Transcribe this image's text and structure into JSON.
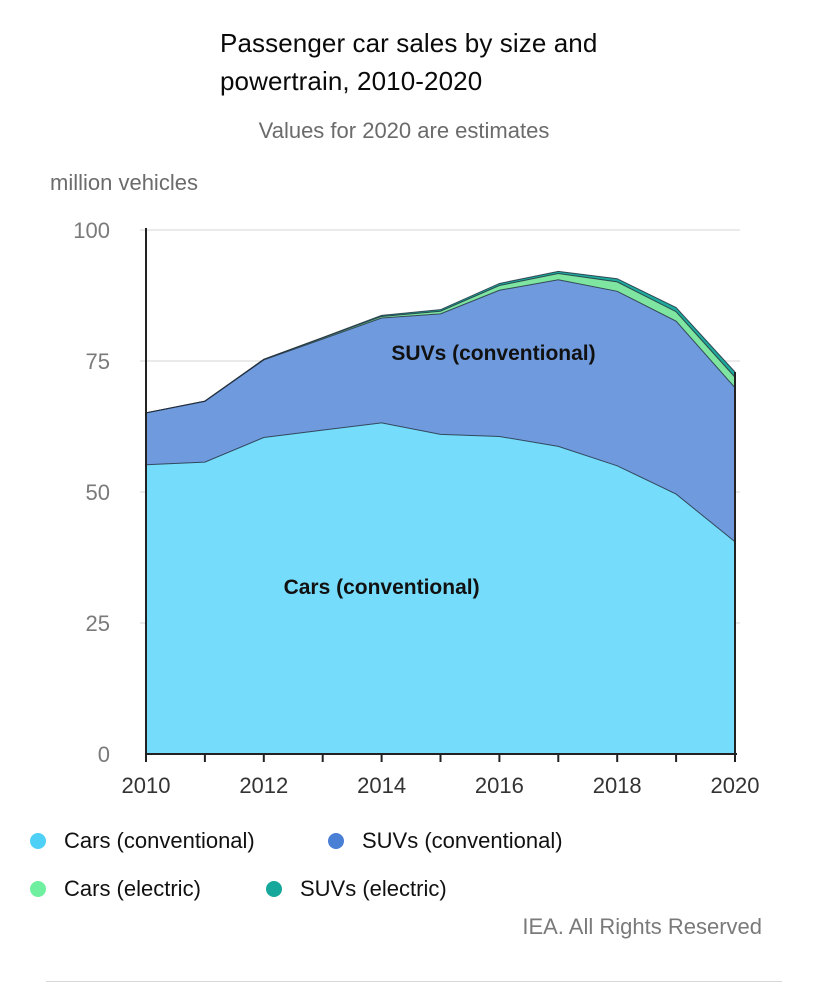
{
  "chart_data": {
    "type": "area",
    "stacked": true,
    "title": "Passenger car sales by size and powertrain, 2010-2020",
    "subtitle": "Values for 2020 are estimates",
    "ylabel": "million vehicles",
    "xlabel": "",
    "ylim": [
      0,
      100
    ],
    "xlim": [
      2010,
      2020
    ],
    "yticks": [
      "0",
      "25",
      "50",
      "75",
      "100"
    ],
    "xticks": [
      "2010",
      "2012",
      "2014",
      "2016",
      "2018",
      "2020"
    ],
    "grid": true,
    "legend_position": "bottom",
    "x": [
      2010,
      2011,
      2012,
      2013,
      2014,
      2015,
      2016,
      2017,
      2018,
      2019,
      2020
    ],
    "series": [
      {
        "name": "Cars (conventional)",
        "color": "#76dcfb",
        "values": [
          55.2,
          55.7,
          60.4,
          61.8,
          63.2,
          61.0,
          60.6,
          58.7,
          55.0,
          49.6,
          40.5
        ]
      },
      {
        "name": "SUVs (conventional)",
        "color": "#6f9bde",
        "values": [
          9.9,
          11.6,
          14.8,
          17.4,
          20.0,
          23.0,
          27.9,
          31.8,
          33.3,
          33.0,
          29.4
        ]
      },
      {
        "name": "Cars (electric)",
        "color": "#7fe6a2",
        "values": [
          0.0,
          0.05,
          0.1,
          0.2,
          0.3,
          0.5,
          0.9,
          1.2,
          1.8,
          1.8,
          2.0
        ]
      },
      {
        "name": "SUVs (electric)",
        "color": "#1fa99c",
        "values": [
          0.0,
          0.0,
          0.05,
          0.1,
          0.2,
          0.3,
          0.4,
          0.4,
          0.6,
          0.8,
          1.0
        ]
      }
    ],
    "annotations": [
      {
        "text": "SUVs (conventional)",
        "series": "SUVs (conventional)"
      },
      {
        "text": "Cars (conventional)",
        "series": "Cars (conventional)"
      }
    ]
  },
  "legend": [
    {
      "label": "Cars (conventional)",
      "color": "#4fd0f6"
    },
    {
      "label": "SUVs (conventional)",
      "color": "#4a7fd6"
    },
    {
      "label": "Cars (electric)",
      "color": "#6ff0a0"
    },
    {
      "label": "SUVs (electric)",
      "color": "#16a89a"
    }
  ],
  "source": "IEA. All Rights Reserved"
}
